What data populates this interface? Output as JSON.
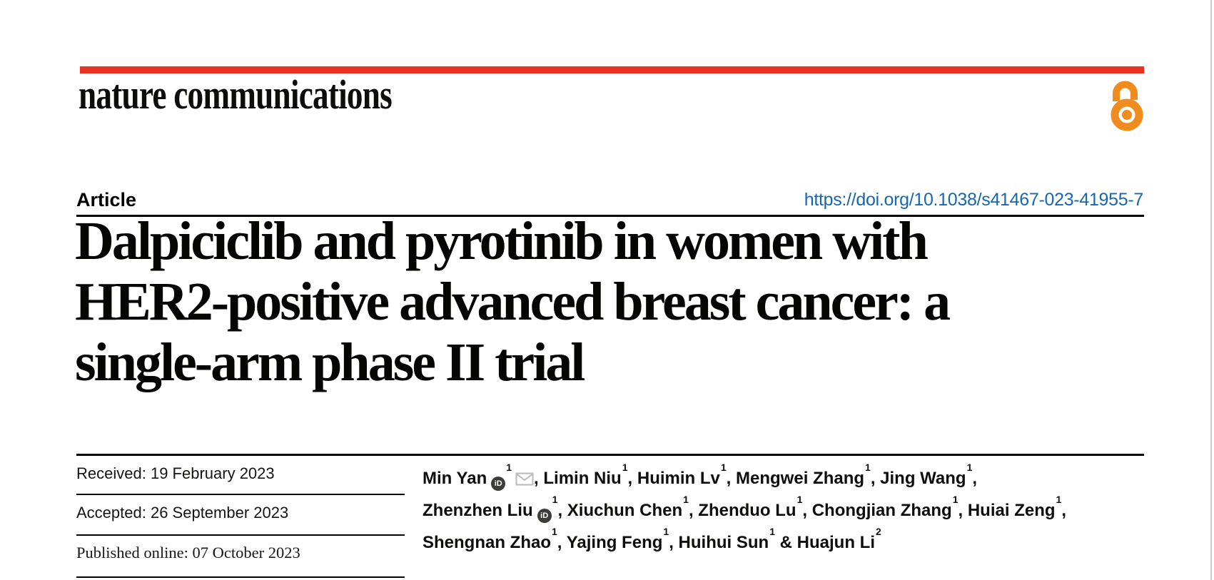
{
  "brand": {
    "journal_name": "nature communications",
    "red_bar_color": "#e63323",
    "open_access_color": "#f08c1e",
    "open_access_icon": "open-access-lock-icon"
  },
  "header": {
    "article_label": "Article",
    "doi_url": "https://doi.org/10.1038/s41467-023-41955-7",
    "doi_color": "#1567b1"
  },
  "title": {
    "lines": [
      "Dalpiciclib and pyrotinib in women with",
      "HER2-positive advanced breast cancer: a",
      "single-arm phase II trial"
    ]
  },
  "dates": [
    {
      "label": "Received:",
      "value": "19 February 2023"
    },
    {
      "label": "Accepted:",
      "value": "26 September 2023"
    },
    {
      "label": "Published online:",
      "value": "07 October 2023"
    }
  ],
  "authors": {
    "orcid_glyph": "iD",
    "list": [
      {
        "name": "Min Yan",
        "sup": "1",
        "orcid": true,
        "email": true,
        "suffix": ", "
      },
      {
        "name": "Limin Niu",
        "sup": "1",
        "suffix": ", "
      },
      {
        "name": "Huimin Lv",
        "sup": "1",
        "suffix": ", "
      },
      {
        "name": "Mengwei Zhang",
        "sup": "1",
        "suffix": ", "
      },
      {
        "name": "Jing Wang",
        "sup": "1",
        "suffix": ","
      },
      {
        "name": "Zhenzhen Liu",
        "sup": "1",
        "orcid": true,
        "suffix": ", "
      },
      {
        "name": "Xiuchun Chen",
        "sup": "1",
        "suffix": ", "
      },
      {
        "name": "Zhenduo Lu",
        "sup": "1",
        "suffix": ", "
      },
      {
        "name": "Chongjian Zhang",
        "sup": "1",
        "suffix": ", "
      },
      {
        "name": "Huiai Zeng",
        "sup": "1",
        "suffix": ","
      },
      {
        "name": "Shengnan Zhao",
        "sup": "1",
        "suffix": ", "
      },
      {
        "name": "Yajing Feng",
        "sup": "1",
        "suffix": ", "
      },
      {
        "name": "Huihui Sun",
        "sup": "1",
        "suffix": " & "
      },
      {
        "name": "Huajun Li",
        "sup": "2",
        "suffix": ""
      }
    ],
    "lines": [
      [
        0,
        1,
        2,
        3,
        4
      ],
      [
        5,
        6,
        7,
        8,
        9
      ],
      [
        10,
        11,
        12,
        13
      ]
    ]
  }
}
